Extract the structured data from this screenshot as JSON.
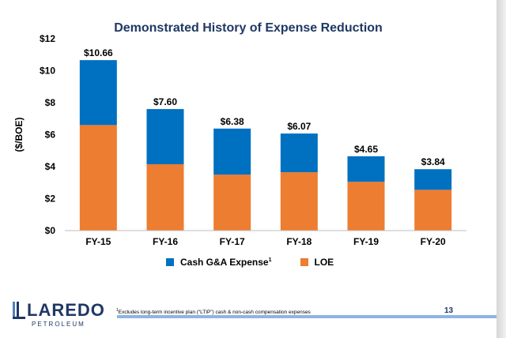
{
  "slide": {
    "title": "Demonstrated History of Expense Reduction",
    "page_number": "13",
    "footnote_marker": "1",
    "footnote": "Excludes long-term incentive plan (“LTIP”) cash & non-cash compensation expenses",
    "logo_word": "LAREDO",
    "logo_sub": "PETROLEUM"
  },
  "colors": {
    "cash_ga": "#0070c0",
    "loe": "#ed7d31",
    "title": "#1f3864"
  },
  "chart_data": {
    "type": "bar",
    "stacked": true,
    "title": "Demonstrated History of Expense Reduction",
    "ylabel": "($/BOE)",
    "xlabel": "",
    "ylim": [
      0,
      12
    ],
    "yticks": [
      "$0",
      "$2",
      "$4",
      "$6",
      "$8",
      "$10",
      "$12"
    ],
    "categories": [
      "FY-15",
      "FY-16",
      "FY-17",
      "FY-18",
      "FY-19",
      "FY-20"
    ],
    "series": [
      {
        "name": "LOE",
        "values": [
          6.6,
          4.15,
          3.5,
          3.65,
          3.05,
          2.55
        ]
      },
      {
        "name": "Cash G&A Expense",
        "values": [
          4.06,
          3.45,
          2.88,
          2.42,
          1.6,
          1.29
        ]
      }
    ],
    "totals": [
      "$10.66",
      "$7.60",
      "$6.38",
      "$6.07",
      "$4.65",
      "$3.84"
    ],
    "legend": {
      "position": "bottom",
      "items": [
        {
          "label": "Cash G&A Expense",
          "superscript": "1",
          "color": "#0070c0"
        },
        {
          "label": "LOE",
          "color": "#ed7d31"
        }
      ]
    },
    "grid": false
  }
}
